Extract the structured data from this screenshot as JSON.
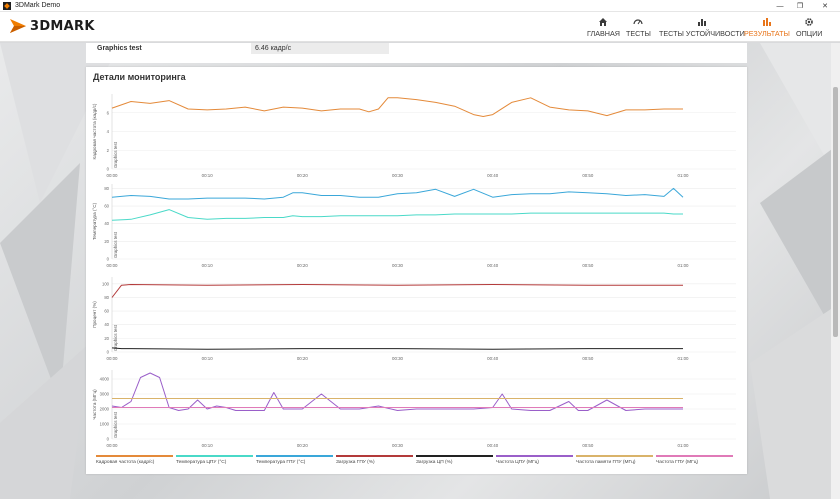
{
  "window": {
    "title": "3DMark Demo"
  },
  "header": {
    "logo_text": "3DMARK",
    "nav": [
      {
        "label": "ГЛАВНАЯ",
        "icon": "home-icon"
      },
      {
        "label": "ТЕСТЫ",
        "icon": "gauge-icon"
      },
      {
        "label": "ТЕСТЫ УСТОЙЧИВОСТИ",
        "icon": "bar-chart-icon"
      },
      {
        "label": "РЕЗУЛЬТАТЫ",
        "icon": "results-icon",
        "active": true
      },
      {
        "label": "ОПЦИИ",
        "icon": "gear-icon"
      }
    ]
  },
  "summary": {
    "label": "Graphics test",
    "value": "6.46 кадр/с"
  },
  "monitoring": {
    "title": "Детали мониторинга",
    "test_label": "Graphics test"
  },
  "colors": {
    "accent": "#e8751a",
    "fps": "#e48a3a",
    "cpu_temp": "#4ad9c8",
    "gpu_temp": "#3aa7d9",
    "gpu_load": "#b33a3a",
    "cpu_load": "#222222",
    "cpu_clock": "#9a5fc9",
    "mem_clock": "#d9b36a",
    "gpu_clock": "#e07ab8"
  },
  "chart_data": [
    {
      "type": "line",
      "ylabel": "Кадровая частота (кадр/с)",
      "ylim": [
        0,
        8
      ],
      "yticks": [
        "0",
        "2",
        "4",
        "6"
      ],
      "xticks": [
        "00:00",
        "00:10",
        "00:20",
        "00:30",
        "00:40",
        "00:50",
        "01:00"
      ],
      "x": [
        0,
        2,
        4,
        6,
        8,
        10,
        12,
        14,
        16,
        18,
        20,
        22,
        24,
        26,
        27,
        28,
        29,
        30,
        32,
        34,
        36,
        38,
        39,
        40,
        42,
        44,
        46,
        48,
        50,
        52,
        54,
        56,
        58,
        60
      ],
      "series": [
        {
          "name": "Кадровая частота (кадр/с)",
          "values": [
            6.5,
            7.2,
            7.0,
            7.3,
            6.4,
            6.3,
            6.4,
            6.6,
            6.2,
            6.6,
            6.5,
            6.2,
            6.4,
            6.4,
            6.1,
            6.4,
            7.6,
            7.6,
            7.4,
            7.1,
            6.7,
            5.8,
            5.6,
            5.8,
            7.1,
            7.6,
            6.6,
            6.3,
            6.2,
            5.7,
            6.3,
            6.3,
            6.4,
            6.4
          ]
        }
      ]
    },
    {
      "type": "line",
      "ylabel": "Температура (°C)",
      "ylim": [
        0,
        85
      ],
      "yticks": [
        "0",
        "20",
        "40",
        "60",
        "80"
      ],
      "xticks": [
        "00:00",
        "00:10",
        "00:20",
        "00:30",
        "00:40",
        "00:50",
        "01:00"
      ],
      "x": [
        0,
        2,
        4,
        6,
        8,
        10,
        12,
        14,
        16,
        18,
        19,
        20,
        22,
        24,
        26,
        28,
        30,
        32,
        34,
        36,
        38,
        40,
        42,
        44,
        46,
        48,
        50,
        52,
        54,
        56,
        58,
        59,
        60
      ],
      "series": [
        {
          "name": "Температура ЦПУ (°C)",
          "values": [
            44,
            45,
            50,
            56,
            47,
            45,
            46,
            46,
            47,
            47,
            49,
            48,
            48,
            49,
            49,
            49,
            49,
            50,
            50,
            51,
            51,
            51,
            51,
            52,
            52,
            52,
            52,
            52,
            52,
            52,
            52,
            51,
            51
          ]
        },
        {
          "name": "Температура ГПУ (°C)",
          "values": [
            70,
            72,
            71,
            68,
            68,
            69,
            69,
            69,
            68,
            70,
            75,
            75,
            72,
            72,
            70,
            70,
            74,
            75,
            79,
            71,
            79,
            70,
            73,
            74,
            74,
            76,
            75,
            74,
            72,
            73,
            71,
            80,
            70
          ]
        }
      ]
    },
    {
      "type": "line",
      "ylabel": "Процент (%)",
      "ylim": [
        0,
        110
      ],
      "yticks": [
        "0",
        "20",
        "40",
        "60",
        "80",
        "100"
      ],
      "xticks": [
        "00:00",
        "00:10",
        "00:20",
        "00:30",
        "00:40",
        "00:50",
        "01:00"
      ],
      "x": [
        0,
        1,
        2,
        10,
        20,
        30,
        40,
        50,
        60
      ],
      "series": [
        {
          "name": "Загрузка ГПУ (%)",
          "values": [
            80,
            98,
            99,
            98,
            99,
            98,
            99,
            98,
            98
          ]
        },
        {
          "name": "Загрузка ЦП (%)",
          "values": [
            6,
            5,
            5,
            4,
            5,
            5,
            4,
            5,
            5
          ]
        }
      ]
    },
    {
      "type": "line",
      "ylabel": "Частота (МГц)",
      "ylim": [
        0,
        4600
      ],
      "yticks": [
        "0",
        "1000",
        "2000",
        "3000",
        "4000"
      ],
      "xticks": [
        "00:00",
        "00:10",
        "00:20",
        "00:30",
        "00:40",
        "00:50",
        "01:00"
      ],
      "x": [
        0,
        1,
        2,
        3,
        4,
        5,
        6,
        7,
        8,
        9,
        10,
        11,
        12,
        13,
        14,
        16,
        17,
        18,
        19,
        20,
        22,
        24,
        26,
        28,
        30,
        32,
        34,
        36,
        38,
        40,
        41,
        42,
        44,
        46,
        48,
        49,
        50,
        52,
        54,
        56,
        58,
        60
      ],
      "series": [
        {
          "name": "Частота ЦПУ (МГц)",
          "values": [
            2200,
            2100,
            2500,
            4100,
            4400,
            4100,
            2100,
            1900,
            2000,
            2600,
            2000,
            2200,
            2100,
            1900,
            1900,
            1900,
            3100,
            2000,
            2000,
            2000,
            3000,
            2000,
            2000,
            2200,
            1900,
            2000,
            2000,
            2000,
            2000,
            2100,
            3000,
            2000,
            1900,
            1900,
            2500,
            1900,
            1900,
            2600,
            1900,
            2000,
            2000,
            2000
          ]
        },
        {
          "name": "Частота памяти ГПУ (МГц)",
          "values": [
            2700,
            2700,
            2700,
            2700,
            2700,
            2700,
            2700,
            2700,
            2700,
            2700,
            2700,
            2700,
            2700,
            2700,
            2700,
            2700,
            2700,
            2700,
            2700,
            2700,
            2700,
            2700,
            2700,
            2700,
            2700,
            2700,
            2700,
            2700,
            2700,
            2700,
            2700,
            2700,
            2700,
            2700,
            2700,
            2700,
            2700,
            2700,
            2700,
            2700,
            2700,
            2700
          ]
        },
        {
          "name": "Частота ГПУ (МГц)",
          "values": [
            2100,
            2100,
            2100,
            2100,
            2100,
            2100,
            2100,
            2100,
            2100,
            2100,
            2100,
            2100,
            2100,
            2100,
            2100,
            2100,
            2100,
            2100,
            2100,
            2100,
            2100,
            2100,
            2100,
            2100,
            2100,
            2100,
            2100,
            2100,
            2100,
            2100,
            2100,
            2100,
            2100,
            2100,
            2100,
            2100,
            2100,
            2100,
            2100,
            2100,
            2100,
            2100
          ]
        }
      ]
    }
  ],
  "legend": [
    {
      "label": "Кадровая частота (кадр/с)",
      "color": "#e48a3a"
    },
    {
      "label": "Температура ЦПУ (°C)",
      "color": "#4ad9c8"
    },
    {
      "label": "Температура ГПУ (°C)",
      "color": "#3aa7d9"
    },
    {
      "label": "Загрузка ГПУ (%)",
      "color": "#b33a3a"
    },
    {
      "label": "Загрузка ЦП (%)",
      "color": "#222222"
    },
    {
      "label": "Частота ЦПУ (МГц)",
      "color": "#9a5fc9"
    },
    {
      "label": "Частота памяти ГПУ (МГц)",
      "color": "#d9b36a"
    },
    {
      "label": "Частота ГПУ (МГц)",
      "color": "#e07ab8"
    }
  ]
}
